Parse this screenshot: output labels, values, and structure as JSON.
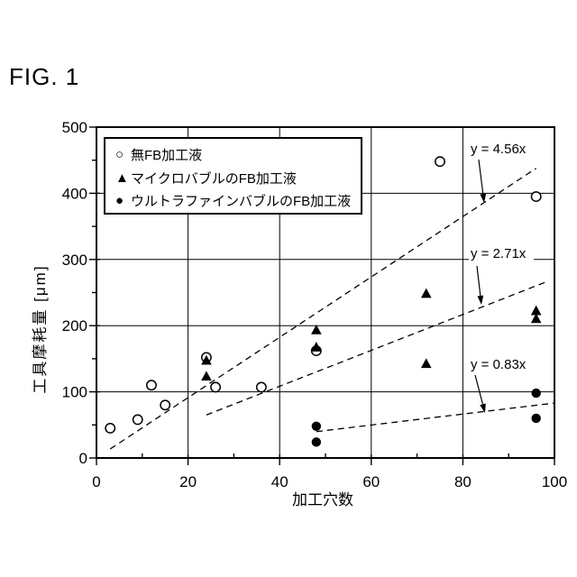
{
  "figure_label": "FIG. 1",
  "colors": {
    "foreground": "#000000",
    "background": "#ffffff"
  },
  "chart_data": {
    "type": "scatter",
    "title": "",
    "xlabel": "加工穴数",
    "ylabel": "工具摩耗量 [μm]",
    "xlim": [
      0,
      100
    ],
    "ylim": [
      0,
      500
    ],
    "xticks": [
      0,
      20,
      40,
      60,
      80,
      100
    ],
    "yticks": [
      0,
      100,
      200,
      300,
      400,
      500
    ],
    "x_minor_step": 10,
    "y_minor_step": 50,
    "grid": true,
    "legend_position": "top-left-inside",
    "series": [
      {
        "name": "無FB加工液",
        "marker": "open-circle",
        "glyph": "○",
        "points": [
          [
            3,
            45
          ],
          [
            9,
            58
          ],
          [
            12,
            110
          ],
          [
            15,
            80
          ],
          [
            24,
            152
          ],
          [
            26,
            107
          ],
          [
            36,
            107
          ],
          [
            48,
            162
          ],
          [
            75,
            448
          ],
          [
            96,
            395
          ]
        ]
      },
      {
        "name": "マイクロバブルのFB加工液",
        "marker": "filled-triangle",
        "glyph": "▲",
        "points": [
          [
            24,
            147
          ],
          [
            24,
            123
          ],
          [
            48,
            193
          ],
          [
            48,
            167
          ],
          [
            72,
            248
          ],
          [
            72,
            142
          ],
          [
            96,
            222
          ],
          [
            96,
            210
          ]
        ]
      },
      {
        "name": "ウルトラファインバブルのFB加工液",
        "marker": "filled-circle",
        "glyph": "●",
        "points": [
          [
            48,
            48
          ],
          [
            48,
            24
          ],
          [
            96,
            98
          ],
          [
            96,
            60
          ]
        ]
      }
    ],
    "trend_lines": [
      {
        "label": "y = 4.56x",
        "slope": 4.56,
        "x_range": [
          3,
          96
        ]
      },
      {
        "label": "y = 2.71x",
        "slope": 2.71,
        "x_range": [
          24,
          98
        ]
      },
      {
        "label": "y = 0.83x",
        "slope": 0.83,
        "x_range": [
          48,
          100
        ]
      }
    ],
    "annotations": [
      {
        "text": "y = 4.56x",
        "tx": 522,
        "ty": 170,
        "w": 72,
        "ax1": 531,
        "ay1": 177,
        "ax2": 537,
        "ay2": 225
      },
      {
        "text": "y = 2.71x",
        "tx": 522,
        "ty": 286,
        "w": 72,
        "ax1": 529,
        "ay1": 295,
        "ax2": 534,
        "ay2": 338
      },
      {
        "text": "y = 0.83x",
        "tx": 522,
        "ty": 409,
        "w": 72,
        "ax1": 527,
        "ay1": 416,
        "ax2": 538,
        "ay2": 458
      }
    ]
  }
}
